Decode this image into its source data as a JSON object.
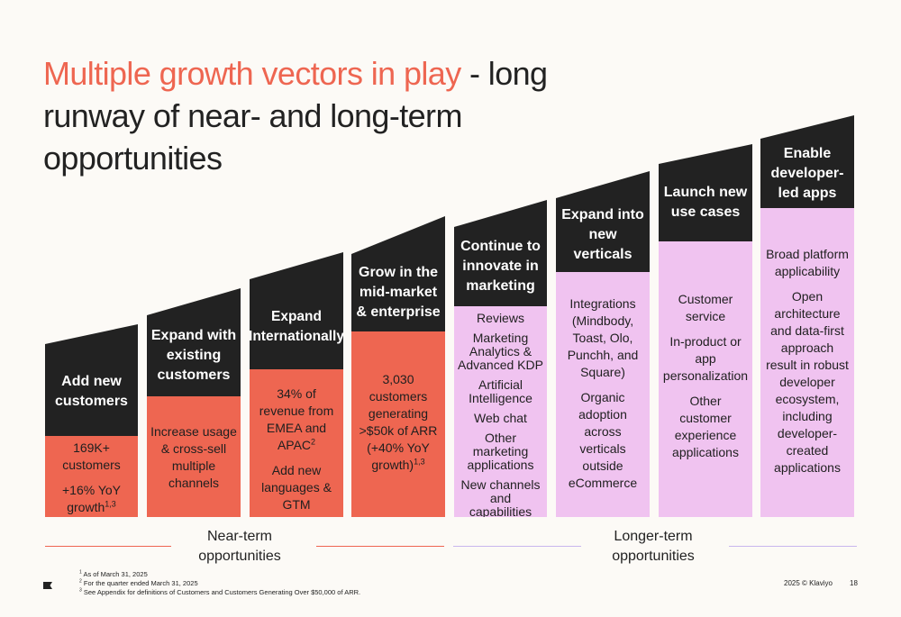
{
  "title": {
    "accent": "Multiple growth vectors in play",
    "rest": " - long runway of near- and long-term opportunities"
  },
  "columns": [
    {
      "heading": "Add new customers",
      "body": [
        "169K+ customers",
        "+16% YoY growth"
      ],
      "body_sup": "1,3",
      "color": "#ee6651"
    },
    {
      "heading": "Expand with existing customers",
      "body": [
        "Increase usage & cross-sell multiple channels"
      ],
      "color": "#ee6651"
    },
    {
      "heading": "Expand Internationally",
      "body": [
        "34% of revenue from EMEA and APAC",
        "Add new languages & GTM resources"
      ],
      "body_sup": "2",
      "color": "#ee6651"
    },
    {
      "heading": "Grow in the mid-market & enterprise",
      "body": [
        "3,030 customers generating >$50k of ARR (+40% YoY growth)"
      ],
      "body_sup": "1,3",
      "color": "#ee6651"
    },
    {
      "heading": "Continue to innovate in marketing",
      "body": [
        "Reviews",
        "Marketing Analytics & Advanced KDP",
        "Artificial Intelligence",
        "Web chat",
        "Other marketing applications",
        "New channels and capabilities"
      ],
      "color": "#f0c3f0"
    },
    {
      "heading": "Expand into new verticals",
      "body": [
        "Integrations (Mindbody, Toast, Olo, Punchh, and Square)",
        "Organic adoption across verticals outside eCommerce"
      ],
      "color": "#f0c3f0"
    },
    {
      "heading": "Launch new use cases",
      "body": [
        "Customer service",
        "In-product or app personalization",
        "Other customer experience applications"
      ],
      "color": "#f0c3f0"
    },
    {
      "heading": "Enable developer-led apps",
      "body": [
        "Broad platform applicability",
        "Open architecture and data-first approach result in robust developer ecosystem, including developer-created applications"
      ],
      "color": "#f0c3f0"
    }
  ],
  "footer": {
    "near_term": "Near-term opportunities",
    "longer_term": "Longer-term opportunities",
    "near_color": "#ee6651",
    "longer_color": "#c9b6ee",
    "notes": [
      {
        "num": "1",
        "text": "As of March 31, 2025"
      },
      {
        "num": "2",
        "text": "For the quarter ended March 31, 2025"
      },
      {
        "num": "3",
        "text": "See Appendix for definitions of Customers and Customers Generating Over $50,000 of ARR."
      }
    ],
    "copyright": "2025 © Klaviyo",
    "page": "18"
  }
}
